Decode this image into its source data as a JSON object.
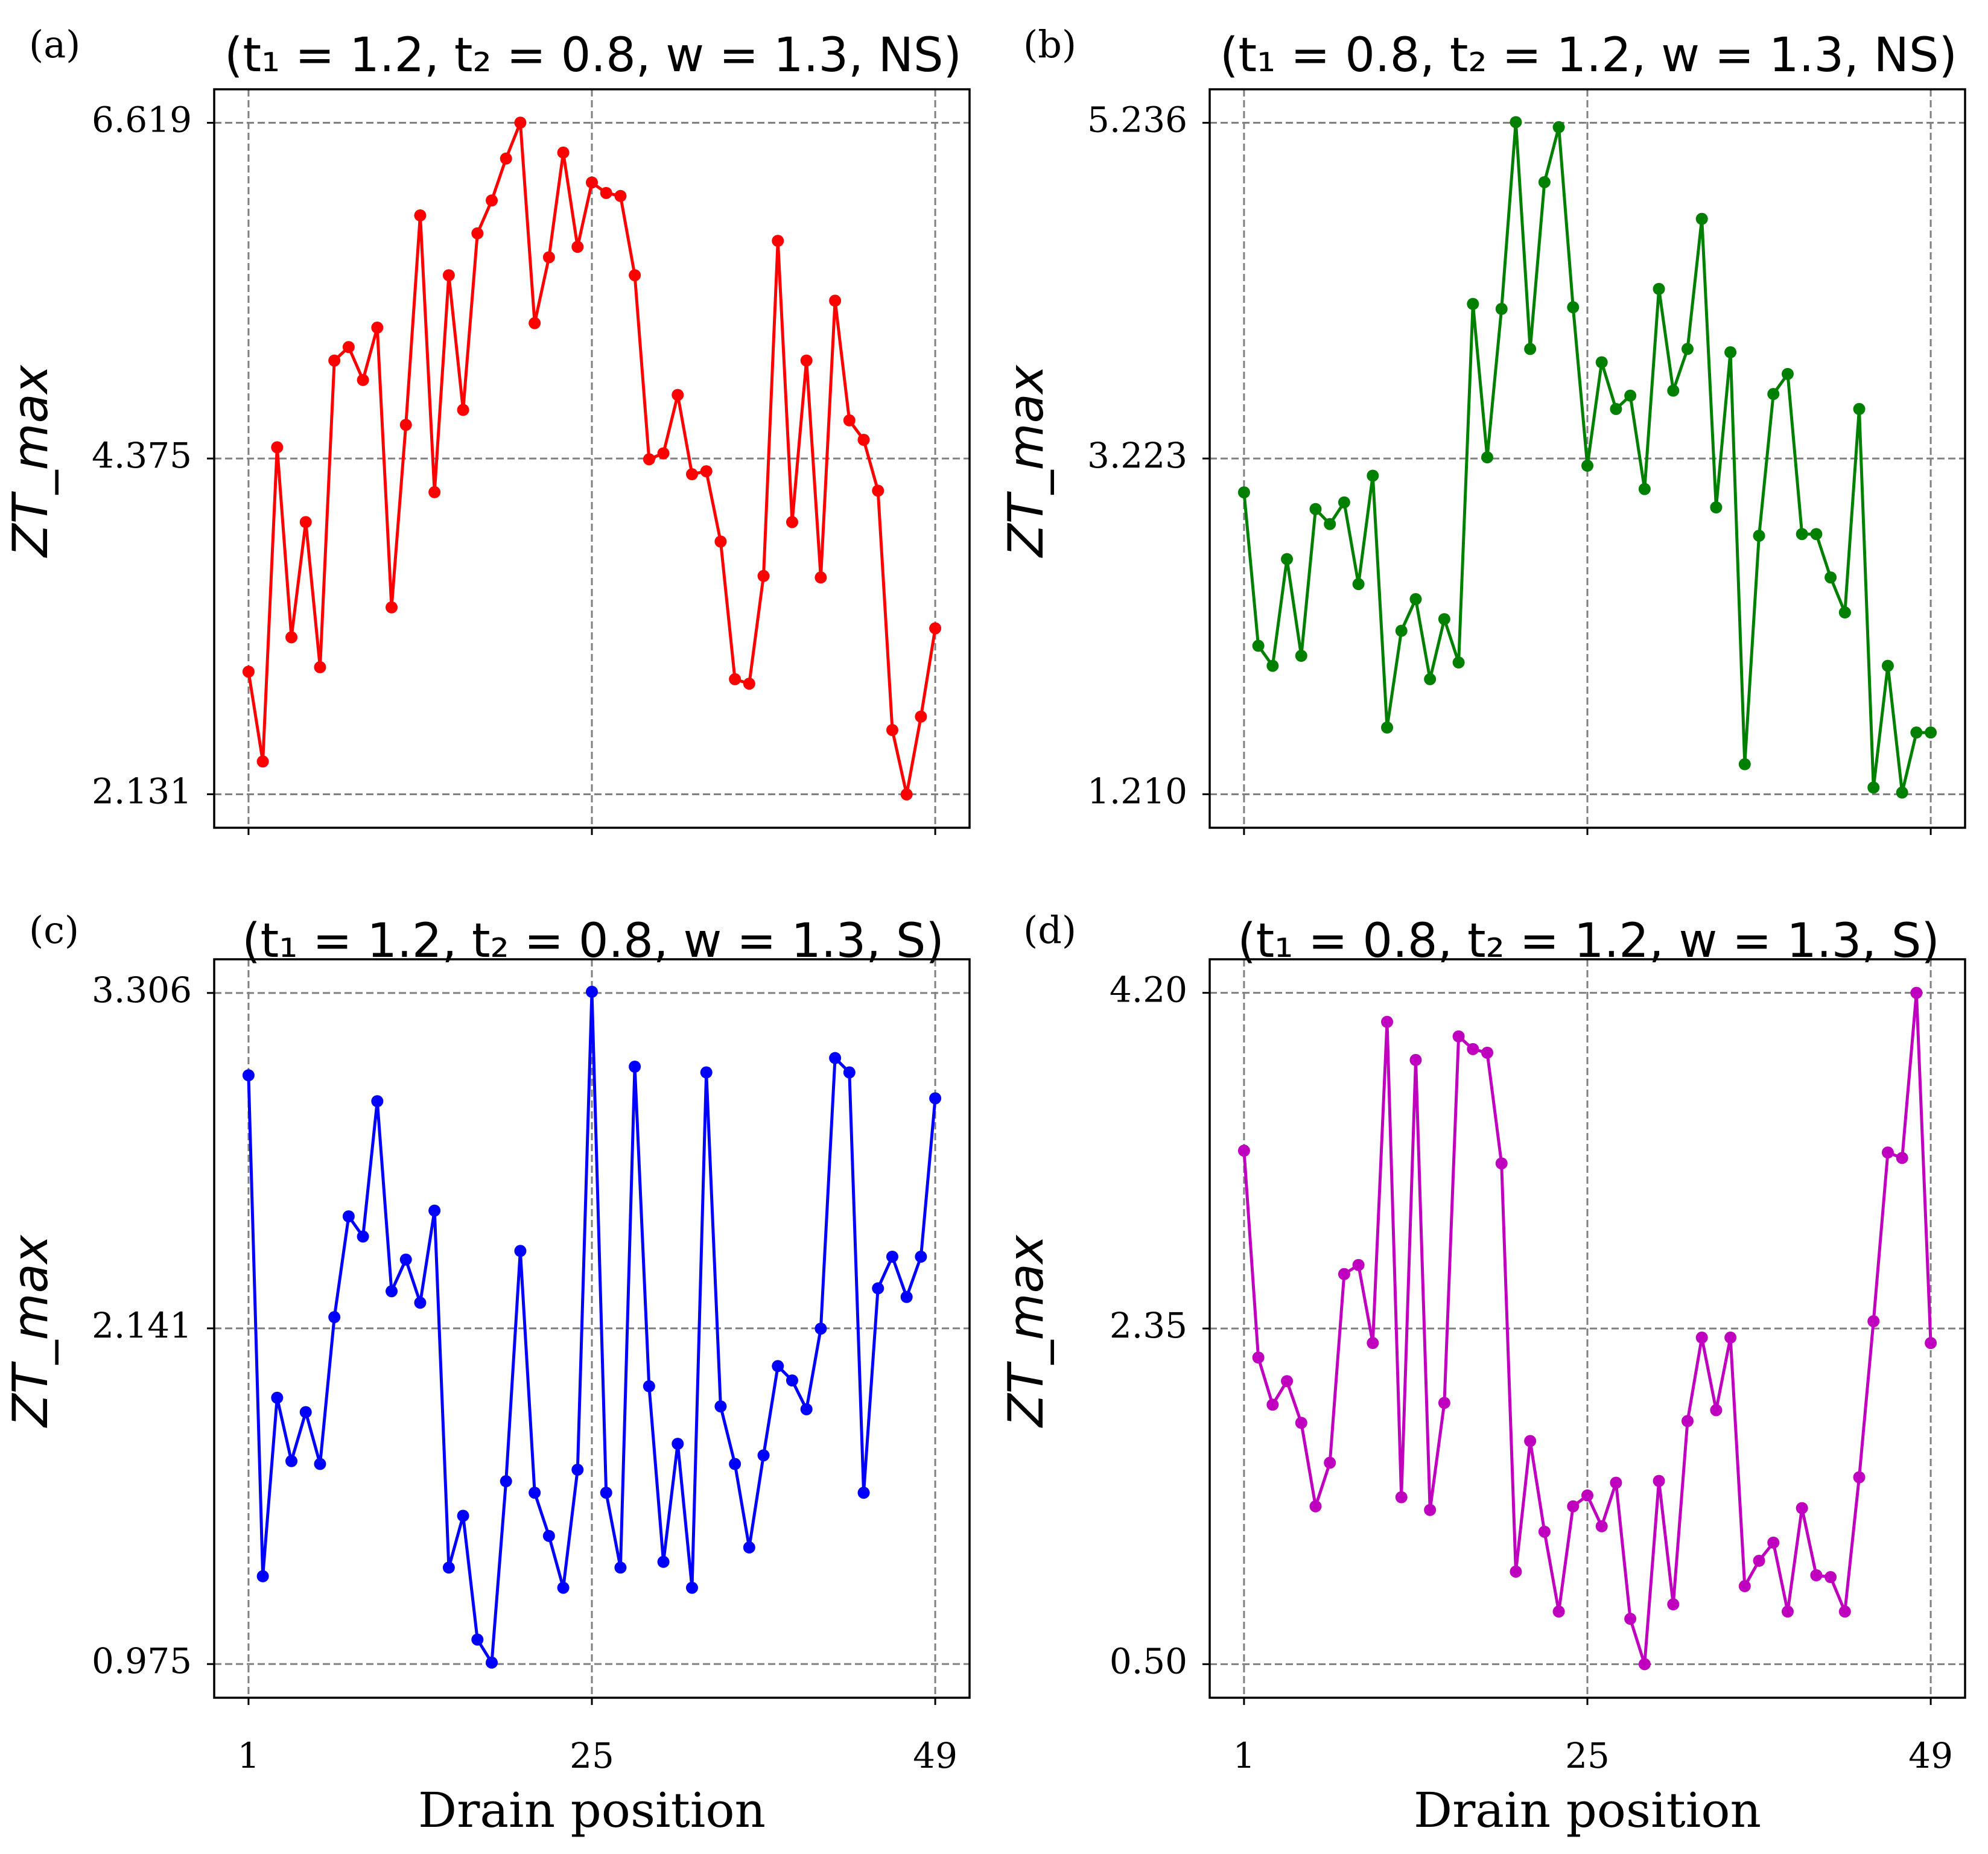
{
  "chart_data": [
    {
      "type": "line",
      "label": "(a)",
      "title": "(t₁ = 1.2, t₂ = 0.8, w = 1.3, NS)",
      "ylabel": "ZT_max",
      "xlabel": "",
      "color": "#ff0000",
      "xticks": [
        1,
        25,
        49
      ],
      "xtick_labels": [
        "",
        "",
        ""
      ],
      "yticks": [
        2.131,
        4.375,
        6.619
      ],
      "ytick_labels": [
        "2.131",
        "4.375",
        "6.619"
      ],
      "xlim": [
        -1.4,
        51.4
      ],
      "ylim": [
        1.907,
        6.843
      ],
      "grid": true,
      "x": [
        1,
        2,
        3,
        4,
        5,
        6,
        7,
        8,
        9,
        10,
        11,
        12,
        13,
        14,
        15,
        16,
        17,
        18,
        19,
        20,
        21,
        22,
        23,
        24,
        25,
        26,
        27,
        28,
        29,
        30,
        31,
        32,
        33,
        34,
        35,
        36,
        37,
        38,
        39,
        40,
        41,
        42,
        43,
        44,
        45,
        46,
        47,
        48,
        49
      ],
      "y": [
        2.95,
        2.35,
        4.45,
        3.18,
        3.95,
        2.98,
        5.03,
        5.12,
        4.9,
        5.25,
        3.38,
        4.6,
        6.0,
        4.15,
        5.6,
        4.7,
        5.88,
        6.1,
        6.38,
        6.62,
        5.28,
        5.72,
        6.42,
        5.79,
        6.22,
        6.15,
        6.13,
        5.6,
        4.37,
        4.41,
        4.8,
        4.27,
        4.29,
        3.82,
        2.9,
        2.87,
        3.59,
        5.83,
        3.95,
        5.03,
        3.58,
        5.43,
        4.63,
        4.5,
        4.16,
        2.56,
        2.13,
        2.65,
        3.24
      ]
    },
    {
      "type": "line",
      "label": "(b)",
      "title": "(t₁ = 0.8, t₂ = 1.2, w = 1.3, NS)",
      "ylabel": "ZT_max",
      "xlabel": "",
      "color": "#008000",
      "xticks": [
        1,
        25,
        49
      ],
      "xtick_labels": [
        "",
        "",
        ""
      ],
      "yticks": [
        1.21,
        3.223,
        5.236
      ],
      "ytick_labels": [
        "1.210",
        "3.223",
        "5.236"
      ],
      "xlim": [
        -1.4,
        51.4
      ],
      "ylim": [
        1.009,
        5.437
      ],
      "grid": true,
      "x": [
        1,
        2,
        3,
        4,
        5,
        6,
        7,
        8,
        9,
        10,
        11,
        12,
        13,
        14,
        15,
        16,
        17,
        18,
        19,
        20,
        21,
        22,
        23,
        24,
        25,
        26,
        27,
        28,
        29,
        30,
        31,
        32,
        33,
        34,
        35,
        36,
        37,
        38,
        39,
        40,
        41,
        42,
        43,
        44,
        45,
        46,
        47,
        48,
        49
      ],
      "y": [
        3.02,
        2.1,
        1.98,
        2.62,
        2.04,
        2.92,
        2.83,
        2.96,
        2.47,
        3.12,
        1.61,
        2.19,
        2.38,
        1.9,
        2.26,
        2.0,
        4.15,
        3.23,
        4.12,
        5.24,
        3.88,
        4.88,
        5.21,
        4.13,
        3.18,
        3.8,
        3.52,
        3.6,
        3.04,
        4.24,
        3.63,
        3.88,
        4.66,
        2.93,
        3.86,
        1.39,
        2.76,
        3.61,
        3.73,
        2.77,
        2.77,
        2.51,
        2.3,
        3.52,
        1.25,
        1.98,
        1.22,
        1.58,
        1.58
      ]
    },
    {
      "type": "line",
      "label": "(c)",
      "title": "(t₁ = 1.2, t₂ = 0.8, w = 1.3, S)",
      "ylabel": "ZT_max",
      "xlabel": "Drain position",
      "color": "#0000ff",
      "xticks": [
        1,
        25,
        49
      ],
      "xtick_labels": [
        "1",
        "25",
        "49"
      ],
      "yticks": [
        0.975,
        2.141,
        3.306
      ],
      "ytick_labels": [
        "0.975",
        "2.141",
        "3.306"
      ],
      "xlim": [
        -1.4,
        51.4
      ],
      "ylim": [
        0.858,
        3.423
      ],
      "grid": true,
      "x": [
        1,
        2,
        3,
        4,
        5,
        6,
        7,
        8,
        9,
        10,
        11,
        12,
        13,
        14,
        15,
        16,
        17,
        18,
        19,
        20,
        21,
        22,
        23,
        24,
        25,
        26,
        27,
        28,
        29,
        30,
        31,
        32,
        33,
        34,
        35,
        36,
        37,
        38,
        39,
        40,
        41,
        42,
        43,
        44,
        45,
        46,
        47,
        48,
        49
      ],
      "y": [
        3.02,
        1.28,
        1.9,
        1.68,
        1.85,
        1.67,
        2.18,
        2.53,
        2.46,
        2.93,
        2.27,
        2.38,
        2.23,
        2.55,
        1.31,
        1.49,
        1.06,
        0.98,
        1.61,
        2.41,
        1.57,
        1.42,
        1.24,
        1.65,
        3.31,
        1.57,
        1.31,
        3.05,
        1.94,
        1.33,
        1.74,
        1.24,
        3.03,
        1.87,
        1.67,
        1.38,
        1.7,
        2.01,
        1.96,
        1.86,
        2.14,
        3.08,
        3.03,
        1.57,
        2.28,
        2.39,
        2.25,
        2.39,
        2.94
      ]
    },
    {
      "type": "line",
      "label": "(d)",
      "title": "(t₁ = 0.8, t₂ = 1.2, w = 1.3, S)",
      "ylabel": "ZT_max",
      "xlabel": "Drain position",
      "color": "#bf00bf",
      "xticks": [
        1,
        25,
        49
      ],
      "xtick_labels": [
        "1",
        "25",
        "49"
      ],
      "yticks": [
        0.5,
        2.35,
        4.2
      ],
      "ytick_labels": [
        "0.50",
        "2.35",
        "4.20"
      ],
      "xlim": [
        -1.4,
        51.4
      ],
      "ylim": [
        0.315,
        4.385
      ],
      "grid": true,
      "x": [
        1,
        2,
        3,
        4,
        5,
        6,
        7,
        8,
        9,
        10,
        11,
        12,
        13,
        14,
        15,
        16,
        17,
        18,
        19,
        20,
        21,
        22,
        23,
        24,
        25,
        26,
        27,
        28,
        29,
        30,
        31,
        32,
        33,
        34,
        35,
        36,
        37,
        38,
        39,
        40,
        41,
        42,
        43,
        44,
        45,
        46,
        47,
        48,
        49
      ],
      "y": [
        3.33,
        2.19,
        1.93,
        2.06,
        1.83,
        1.37,
        1.61,
        2.65,
        2.7,
        2.27,
        4.04,
        1.42,
        3.83,
        1.35,
        1.94,
        3.96,
        3.89,
        3.87,
        3.26,
        1.01,
        1.73,
        1.23,
        0.79,
        1.37,
        1.43,
        1.26,
        1.5,
        0.75,
        0.5,
        1.51,
        0.83,
        1.84,
        2.3,
        1.9,
        2.3,
        0.93,
        1.07,
        1.17,
        0.79,
        1.36,
        0.99,
        0.98,
        0.79,
        1.53,
        2.39,
        3.32,
        3.29,
        4.2,
        2.27
      ]
    }
  ]
}
